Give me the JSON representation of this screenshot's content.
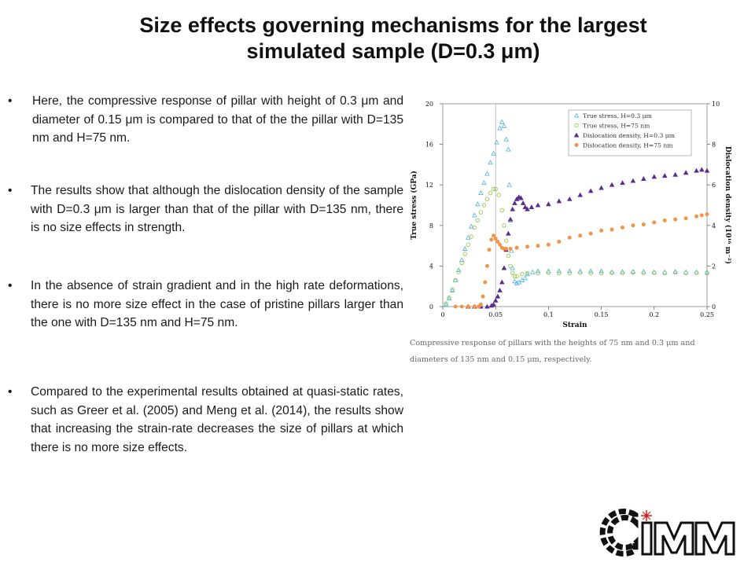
{
  "slide": {
    "title_line1": "Size effects governing mechanisms for the largest",
    "title_line2": "simulated sample (D=0.3 μm)",
    "bullet_char": "•",
    "bullets": [
      "Here, the compressive response of pillar with height of 0.3 μm and diameter of 0.15 μm is compared to that of the the pillar with D=135 nm and H=75 nm.",
      "The results show that although the dislocation density of the sample with D=0.3 μm is larger than that of the pillar with D=135 nm, there is no size effects in strength.",
      "In the absence of strain gradient and in the high rate deformations, there is no more size effect in the case of pristine pillars larger than the one with D=135 nm and H=75 nm.",
      "Compared to the experimental results obtained at quasi-static rates, such as Greer et al. (2005) and Meng et al. (2014), the results show that increasing the strain-rate decreases the size of pillars at which there is no more size effects."
    ],
    "caption": "Compressive response of pillars with the heights of 75 nm and 0.3 μm and diameters of 135 nm and 0.15 μm, respectively.",
    "logo_text": "CIMM",
    "logo_colors": {
      "dark": "#111111",
      "accent": "#e02020"
    }
  },
  "chart_data": {
    "type": "scatter",
    "title": "",
    "xlabel": "Strain",
    "ylabel": "True stress (GPa)",
    "y2label": "Dislocation density (10¹⁶ m⁻²)",
    "xlim": [
      0,
      0.25
    ],
    "ylim": [
      0,
      20
    ],
    "y2lim": [
      0,
      10
    ],
    "xticks": [
      "0",
      "0.05",
      "0.1",
      "0.15",
      "0.2",
      "0.25"
    ],
    "yticks": [
      "0",
      "4",
      "8",
      "12",
      "16",
      "20"
    ],
    "y2ticks": [
      "0",
      "2",
      "4",
      "6",
      "8",
      "10"
    ],
    "grid": false,
    "legend_position": "top-right",
    "series": [
      {
        "name": "True stress, H=0.3 μm",
        "axis": "left",
        "marker": "triangle-open",
        "color": "#4fb3df",
        "points": [
          [
            0.003,
            0.2
          ],
          [
            0.006,
            0.8
          ],
          [
            0.009,
            1.6
          ],
          [
            0.012,
            2.6
          ],
          [
            0.015,
            3.6
          ],
          [
            0.018,
            4.6
          ],
          [
            0.021,
            5.7
          ],
          [
            0.024,
            6.8
          ],
          [
            0.027,
            7.9
          ],
          [
            0.03,
            9.0
          ],
          [
            0.033,
            10.1
          ],
          [
            0.036,
            11.2
          ],
          [
            0.039,
            12.2
          ],
          [
            0.042,
            13.1
          ],
          [
            0.045,
            14.2
          ],
          [
            0.048,
            15.1
          ],
          [
            0.051,
            16.2
          ],
          [
            0.054,
            17.6
          ],
          [
            0.056,
            18.2
          ],
          [
            0.058,
            17.8
          ],
          [
            0.06,
            16.5
          ],
          [
            0.062,
            15.5
          ],
          [
            0.063,
            12.0
          ],
          [
            0.064,
            8.5
          ],
          [
            0.065,
            5.5
          ],
          [
            0.066,
            3.8
          ],
          [
            0.068,
            2.5
          ],
          [
            0.07,
            2.3
          ],
          [
            0.072,
            2.4
          ],
          [
            0.075,
            2.6
          ],
          [
            0.078,
            2.8
          ],
          [
            0.08,
            3.2
          ],
          [
            0.085,
            3.4
          ],
          [
            0.09,
            3.5
          ],
          [
            0.1,
            3.5
          ],
          [
            0.11,
            3.5
          ],
          [
            0.12,
            3.5
          ],
          [
            0.13,
            3.5
          ],
          [
            0.14,
            3.5
          ],
          [
            0.15,
            3.5
          ],
          [
            0.16,
            3.4
          ],
          [
            0.17,
            3.45
          ],
          [
            0.18,
            3.45
          ],
          [
            0.19,
            3.45
          ],
          [
            0.2,
            3.4
          ],
          [
            0.21,
            3.4
          ],
          [
            0.22,
            3.45
          ],
          [
            0.23,
            3.4
          ],
          [
            0.24,
            3.4
          ],
          [
            0.25,
            3.4
          ]
        ]
      },
      {
        "name": "True stress, H=75 nm",
        "axis": "left",
        "marker": "circle-open",
        "color": "#8dc63f",
        "points": [
          [
            0.003,
            0.3
          ],
          [
            0.006,
            0.9
          ],
          [
            0.009,
            1.7
          ],
          [
            0.012,
            2.6
          ],
          [
            0.015,
            3.4
          ],
          [
            0.018,
            4.3
          ],
          [
            0.021,
            5.2
          ],
          [
            0.024,
            6.1
          ],
          [
            0.027,
            6.9
          ],
          [
            0.03,
            7.8
          ],
          [
            0.033,
            8.5
          ],
          [
            0.036,
            9.3
          ],
          [
            0.039,
            10.0
          ],
          [
            0.042,
            10.6
          ],
          [
            0.045,
            11.2
          ],
          [
            0.048,
            11.6
          ],
          [
            0.05,
            11.6
          ],
          [
            0.053,
            11.0
          ],
          [
            0.056,
            9.5
          ],
          [
            0.058,
            8.0
          ],
          [
            0.06,
            6.5
          ],
          [
            0.062,
            5.0
          ],
          [
            0.064,
            4.0
          ],
          [
            0.066,
            3.3
          ],
          [
            0.068,
            3.0
          ],
          [
            0.07,
            3.0
          ],
          [
            0.075,
            3.2
          ],
          [
            0.08,
            3.3
          ],
          [
            0.09,
            3.3
          ],
          [
            0.1,
            3.35
          ],
          [
            0.11,
            3.3
          ],
          [
            0.12,
            3.3
          ],
          [
            0.13,
            3.35
          ],
          [
            0.14,
            3.3
          ],
          [
            0.15,
            3.3
          ],
          [
            0.16,
            3.35
          ],
          [
            0.17,
            3.3
          ],
          [
            0.18,
            3.35
          ],
          [
            0.19,
            3.3
          ],
          [
            0.2,
            3.35
          ],
          [
            0.21,
            3.3
          ],
          [
            0.22,
            3.35
          ],
          [
            0.23,
            3.3
          ],
          [
            0.24,
            3.35
          ],
          [
            0.25,
            3.3
          ]
        ]
      },
      {
        "name": "Dislocation density, H=0.3 μm",
        "axis": "right",
        "marker": "triangle-filled",
        "color": "#5b2c8f",
        "points": [
          [
            0.024,
            0.0
          ],
          [
            0.03,
            0.0
          ],
          [
            0.036,
            0.0
          ],
          [
            0.042,
            0.0
          ],
          [
            0.046,
            0.05
          ],
          [
            0.048,
            0.1
          ],
          [
            0.05,
            0.3
          ],
          [
            0.052,
            0.5
          ],
          [
            0.054,
            0.8
          ],
          [
            0.056,
            1.2
          ],
          [
            0.058,
            1.9
          ],
          [
            0.06,
            2.8
          ],
          [
            0.062,
            3.6
          ],
          [
            0.064,
            4.3
          ],
          [
            0.066,
            4.8
          ],
          [
            0.068,
            5.1
          ],
          [
            0.07,
            5.3
          ],
          [
            0.072,
            5.4
          ],
          [
            0.074,
            5.35
          ],
          [
            0.076,
            5.1
          ],
          [
            0.078,
            4.9
          ],
          [
            0.08,
            4.8
          ],
          [
            0.084,
            4.9
          ],
          [
            0.09,
            5.0
          ],
          [
            0.1,
            5.05
          ],
          [
            0.11,
            5.2
          ],
          [
            0.12,
            5.3
          ],
          [
            0.13,
            5.5
          ],
          [
            0.14,
            5.7
          ],
          [
            0.15,
            5.85
          ],
          [
            0.16,
            6.0
          ],
          [
            0.17,
            6.1
          ],
          [
            0.18,
            6.2
          ],
          [
            0.19,
            6.3
          ],
          [
            0.2,
            6.4
          ],
          [
            0.21,
            6.45
          ],
          [
            0.22,
            6.5
          ],
          [
            0.23,
            6.6
          ],
          [
            0.24,
            6.7
          ],
          [
            0.245,
            6.75
          ],
          [
            0.25,
            6.7
          ]
        ]
      },
      {
        "name": "Dislocation density, H=75 nm",
        "axis": "right",
        "marker": "circle-filled",
        "color": "#f0954a",
        "points": [
          [
            0.012,
            0.0
          ],
          [
            0.018,
            0.0
          ],
          [
            0.024,
            0.0
          ],
          [
            0.03,
            0.0
          ],
          [
            0.034,
            0.0
          ],
          [
            0.036,
            0.1
          ],
          [
            0.038,
            0.5
          ],
          [
            0.04,
            1.2
          ],
          [
            0.042,
            2.0
          ],
          [
            0.044,
            2.8
          ],
          [
            0.046,
            3.3
          ],
          [
            0.048,
            3.5
          ],
          [
            0.05,
            3.35
          ],
          [
            0.052,
            3.2
          ],
          [
            0.054,
            3.05
          ],
          [
            0.056,
            2.9
          ],
          [
            0.058,
            2.85
          ],
          [
            0.06,
            2.85
          ],
          [
            0.064,
            2.85
          ],
          [
            0.07,
            2.9
          ],
          [
            0.08,
            2.95
          ],
          [
            0.09,
            3.0
          ],
          [
            0.1,
            3.05
          ],
          [
            0.11,
            3.2
          ],
          [
            0.12,
            3.4
          ],
          [
            0.13,
            3.5
          ],
          [
            0.14,
            3.6
          ],
          [
            0.15,
            3.75
          ],
          [
            0.16,
            3.8
          ],
          [
            0.17,
            3.9
          ],
          [
            0.18,
            4.0
          ],
          [
            0.19,
            4.05
          ],
          [
            0.2,
            4.15
          ],
          [
            0.21,
            4.25
          ],
          [
            0.22,
            4.3
          ],
          [
            0.23,
            4.35
          ],
          [
            0.24,
            4.45
          ],
          [
            0.245,
            4.5
          ],
          [
            0.25,
            4.55
          ]
        ]
      }
    ]
  }
}
